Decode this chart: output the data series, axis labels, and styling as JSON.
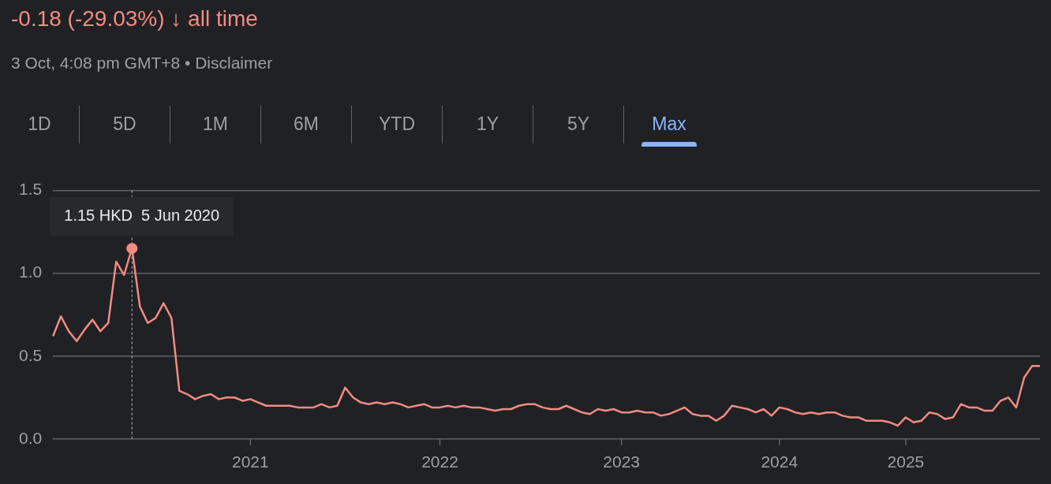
{
  "chart_data": {
    "type": "line",
    "title": "-0.18 (-29.03%) ↓ all time",
    "subtitle": "3 Oct, 4:08 pm GMT+8 • Disclaimer",
    "annotations": [
      "1D",
      "5D",
      "1M",
      "6M",
      "YTD",
      "1Y",
      "5Y",
      "Max",
      "1.15 HKD  5 Jun 2020"
    ],
    "categories": [
      null,
      null,
      null,
      null,
      null,
      null,
      null,
      null,
      null,
      null,
      null,
      null,
      null,
      null,
      null,
      null,
      null,
      null,
      null,
      null,
      null,
      null,
      null,
      null,
      null,
      "2021",
      null,
      null,
      null,
      null,
      null,
      null,
      null,
      null,
      null,
      null,
      null,
      null,
      null,
      null,
      null,
      null,
      null,
      null,
      null,
      null,
      null,
      null,
      null,
      "2022",
      null,
      null,
      null,
      null,
      null,
      null,
      null,
      null,
      null,
      null,
      null,
      null,
      null,
      null,
      null,
      null,
      null,
      null,
      null,
      null,
      null,
      null,
      "2023",
      null,
      null,
      null,
      null,
      null,
      null,
      null,
      null,
      null,
      null,
      null,
      null,
      null,
      null,
      null,
      null,
      null,
      null,
      null,
      "2024",
      null,
      null,
      null,
      null,
      null,
      null,
      null,
      null,
      null,
      null,
      null,
      null,
      null,
      null,
      null,
      "2025",
      null,
      null,
      null,
      null,
      null,
      null,
      null,
      null,
      null,
      null,
      null,
      null,
      null,
      null,
      null,
      null,
      null
    ],
    "series": [
      {
        "color": "#f28b82",
        "values": [
          0.62,
          0.74,
          0.65,
          0.59,
          0.66,
          0.72,
          0.65,
          0.7,
          1.07,
          0.99,
          1.15,
          0.8,
          0.7,
          0.73,
          0.82,
          0.73,
          0.29,
          0.27,
          0.24,
          0.26,
          0.27,
          0.24,
          0.25,
          0.25,
          0.23,
          0.24,
          0.22,
          0.2,
          0.2,
          0.2,
          0.2,
          0.19,
          0.19,
          0.19,
          0.21,
          0.19,
          0.2,
          0.31,
          0.25,
          0.22,
          0.21,
          0.22,
          0.21,
          0.22,
          0.21,
          0.19,
          0.2,
          0.21,
          0.19,
          0.19,
          0.2,
          0.19,
          0.2,
          0.19,
          0.19,
          0.18,
          0.17,
          0.18,
          0.18,
          0.2,
          0.21,
          0.21,
          0.19,
          0.18,
          0.18,
          0.2,
          0.18,
          0.16,
          0.15,
          0.18,
          0.17,
          0.18,
          0.16,
          0.16,
          0.17,
          0.16,
          0.16,
          0.14,
          0.15,
          0.17,
          0.19,
          0.15,
          0.14,
          0.14,
          0.11,
          0.14,
          0.2,
          0.19,
          0.18,
          0.16,
          0.18,
          0.14,
          0.19,
          0.18,
          0.16,
          0.15,
          0.16,
          0.15,
          0.16,
          0.16,
          0.14,
          0.13,
          0.13,
          0.11,
          0.11,
          0.11,
          0.1,
          0.08,
          0.13,
          0.1,
          0.11,
          0.16,
          0.15,
          0.12,
          0.13,
          0.21,
          0.19,
          0.19,
          0.17,
          0.17,
          0.23,
          0.25,
          0.19,
          0.37,
          0.44,
          0.44
        ]
      }
    ],
    "ylim": [
      0,
      1.5
    ],
    "yticks": [
      {
        "value": 0,
        "label": "0.0"
      },
      0.5,
      {
        "value": 1,
        "label": "1.0"
      },
      1.5
    ],
    "grid": "y",
    "legend": false,
    "marker": "none",
    "line_style": "solid"
  }
}
